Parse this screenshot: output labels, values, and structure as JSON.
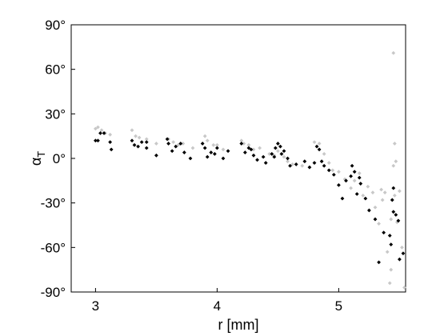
{
  "chart_data": {
    "type": "scatter",
    "title": "",
    "xlabel": "r [mm]",
    "ylabel_symbol": "α",
    "ylabel_subscript": "T",
    "xlim": [
      2.8,
      5.55
    ],
    "ylim": [
      -90,
      90
    ],
    "x_ticks": [
      {
        "value": 3,
        "label": "3"
      },
      {
        "value": 4,
        "label": "4"
      },
      {
        "value": 5,
        "label": "5"
      }
    ],
    "y_ticks": [
      {
        "value": 90,
        "label": "90°"
      },
      {
        "value": 60,
        "label": "60°"
      },
      {
        "value": 30,
        "label": "30°"
      },
      {
        "value": 0,
        "label": "0°"
      },
      {
        "value": -30,
        "label": "-30°"
      },
      {
        "value": -60,
        "label": "-60°"
      },
      {
        "value": -90,
        "label": "-90°"
      }
    ],
    "grid": false,
    "series": [
      {
        "color": "#c8c8c8",
        "points": [
          [
            3.0,
            20
          ],
          [
            3.02,
            21
          ],
          [
            3.05,
            19
          ],
          [
            3.08,
            17
          ],
          [
            3.12,
            16
          ],
          [
            3.3,
            19
          ],
          [
            3.33,
            15
          ],
          [
            3.36,
            14
          ],
          [
            3.42,
            13
          ],
          [
            3.5,
            10
          ],
          [
            3.6,
            13
          ],
          [
            3.64,
            11
          ],
          [
            3.68,
            9
          ],
          [
            3.72,
            10
          ],
          [
            3.8,
            7
          ],
          [
            3.9,
            15
          ],
          [
            3.92,
            12
          ],
          [
            3.97,
            9
          ],
          [
            4.0,
            9
          ],
          [
            4.05,
            6
          ],
          [
            4.2,
            12
          ],
          [
            4.22,
            10
          ],
          [
            4.26,
            9
          ],
          [
            4.3,
            6
          ],
          [
            4.35,
            7
          ],
          [
            4.43,
            3
          ],
          [
            4.47,
            2
          ],
          [
            4.5,
            5
          ],
          [
            4.55,
            1
          ],
          [
            4.58,
            -2
          ],
          [
            4.62,
            -4
          ],
          [
            4.7,
            -5
          ],
          [
            4.76,
            -6
          ],
          [
            4.8,
            11
          ],
          [
            4.84,
            10
          ],
          [
            4.88,
            3
          ],
          [
            4.92,
            -3
          ],
          [
            4.95,
            -8
          ],
          [
            5.0,
            -9
          ],
          [
            5.05,
            -14
          ],
          [
            5.1,
            -20
          ],
          [
            5.13,
            -15
          ],
          [
            5.17,
            -10
          ],
          [
            5.2,
            -25
          ],
          [
            5.24,
            -19
          ],
          [
            5.28,
            -23
          ],
          [
            5.3,
            -33
          ],
          [
            5.33,
            -44
          ],
          [
            5.36,
            -28
          ],
          [
            5.38,
            -23
          ],
          [
            5.4,
            -63
          ],
          [
            5.42,
            -84
          ],
          [
            5.43,
            -41
          ],
          [
            5.44,
            -28
          ],
          [
            5.45,
            -5
          ],
          [
            5.46,
            -25
          ],
          [
            5.48,
            -43
          ],
          [
            5.5,
            -22
          ],
          [
            5.52,
            -60
          ],
          [
            5.54,
            -87
          ],
          [
            5.45,
            71
          ],
          [
            5.46,
            10
          ],
          [
            5.47,
            -2
          ],
          [
            5.35,
            -21
          ],
          [
            5.43,
            -75
          ]
        ]
      },
      {
        "color": "#000000",
        "points": [
          [
            3.0,
            12
          ],
          [
            3.02,
            12
          ],
          [
            3.04,
            17
          ],
          [
            3.07,
            17
          ],
          [
            3.12,
            11
          ],
          [
            3.13,
            6
          ],
          [
            3.3,
            12
          ],
          [
            3.32,
            9
          ],
          [
            3.35,
            8
          ],
          [
            3.38,
            11
          ],
          [
            3.42,
            11
          ],
          [
            3.42,
            7
          ],
          [
            3.5,
            2
          ],
          [
            3.59,
            13
          ],
          [
            3.6,
            10
          ],
          [
            3.63,
            5
          ],
          [
            3.66,
            8
          ],
          [
            3.7,
            10
          ],
          [
            3.73,
            4
          ],
          [
            3.78,
            0
          ],
          [
            3.88,
            10
          ],
          [
            3.9,
            7
          ],
          [
            3.92,
            1
          ],
          [
            3.95,
            4
          ],
          [
            3.98,
            3
          ],
          [
            4.0,
            7
          ],
          [
            4.05,
            0
          ],
          [
            4.09,
            5
          ],
          [
            4.2,
            10
          ],
          [
            4.23,
            4
          ],
          [
            4.26,
            7
          ],
          [
            4.28,
            6
          ],
          [
            4.3,
            2
          ],
          [
            4.33,
            -1
          ],
          [
            4.38,
            1
          ],
          [
            4.4,
            -3
          ],
          [
            4.45,
            3
          ],
          [
            4.47,
            1
          ],
          [
            4.48,
            7
          ],
          [
            4.5,
            10
          ],
          [
            4.52,
            8
          ],
          [
            4.53,
            3
          ],
          [
            4.55,
            5
          ],
          [
            4.58,
            0
          ],
          [
            4.6,
            -5
          ],
          [
            4.65,
            -4
          ],
          [
            4.72,
            -2
          ],
          [
            4.76,
            -6
          ],
          [
            4.8,
            -3
          ],
          [
            4.82,
            8
          ],
          [
            4.84,
            6
          ],
          [
            4.86,
            -2
          ],
          [
            4.88,
            -5
          ],
          [
            4.92,
            -8
          ],
          [
            4.96,
            -11
          ],
          [
            5.0,
            -18
          ],
          [
            5.03,
            -27
          ],
          [
            5.06,
            -15
          ],
          [
            5.1,
            -12
          ],
          [
            5.11,
            -5
          ],
          [
            5.13,
            -9
          ],
          [
            5.15,
            -24
          ],
          [
            5.17,
            -13
          ],
          [
            5.18,
            -17
          ],
          [
            5.22,
            -27
          ],
          [
            5.25,
            -35
          ],
          [
            5.3,
            -41
          ],
          [
            5.33,
            -70
          ],
          [
            5.37,
            -50
          ],
          [
            5.42,
            -52
          ],
          [
            5.43,
            -58
          ],
          [
            5.44,
            -28
          ],
          [
            5.45,
            -20
          ],
          [
            5.45,
            -36
          ],
          [
            5.47,
            -38
          ],
          [
            5.49,
            -42
          ],
          [
            5.5,
            -68
          ],
          [
            5.53,
            -64
          ]
        ]
      }
    ]
  }
}
